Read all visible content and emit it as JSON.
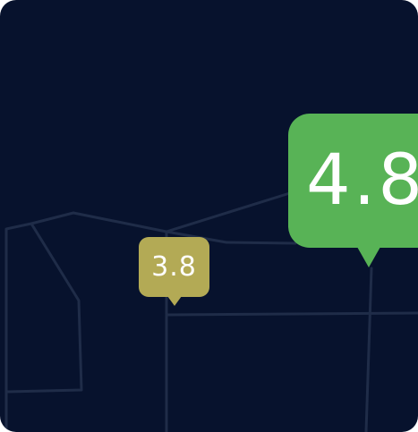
{
  "markers": {
    "small_value": "3.8",
    "large_value": "4.8",
    "small_color": "#b3aa55",
    "large_color": "#58b356"
  },
  "map": {
    "background_color": "#07122d",
    "road_color": "#1f2c48"
  }
}
